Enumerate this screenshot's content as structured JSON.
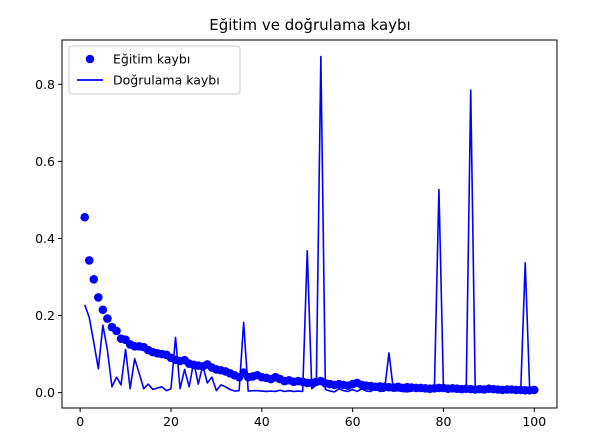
{
  "chart_data": {
    "type": "line",
    "title": "Eğitim ve doğrulama kaybı",
    "xlabel": "",
    "ylabel": "",
    "xlim": [
      -4,
      105
    ],
    "ylim": [
      -0.04,
      0.915
    ],
    "xticks": [
      0,
      20,
      40,
      60,
      80,
      100
    ],
    "yticks": [
      0.0,
      0.2,
      0.4,
      0.6,
      0.8
    ],
    "grid": false,
    "legend_position": "top-left",
    "colors": {
      "series": "#0000ff",
      "axes": "#000000",
      "background": "#ffffff"
    },
    "series": [
      {
        "name": "Eğitim kaybı",
        "style": "markers",
        "x": [
          1,
          2,
          3,
          4,
          5,
          6,
          7,
          8,
          9,
          10,
          11,
          12,
          13,
          14,
          15,
          16,
          17,
          18,
          19,
          20,
          21,
          22,
          23,
          24,
          25,
          26,
          27,
          28,
          29,
          30,
          31,
          32,
          33,
          34,
          35,
          36,
          37,
          38,
          39,
          40,
          41,
          42,
          43,
          44,
          45,
          46,
          47,
          48,
          49,
          50,
          51,
          52,
          53,
          54,
          55,
          56,
          57,
          58,
          59,
          60,
          61,
          62,
          63,
          64,
          65,
          66,
          67,
          68,
          69,
          70,
          71,
          72,
          73,
          74,
          75,
          76,
          77,
          78,
          79,
          80,
          81,
          82,
          83,
          84,
          85,
          86,
          87,
          88,
          89,
          90,
          91,
          92,
          93,
          94,
          95,
          96,
          97,
          98,
          99,
          100
        ],
        "y": [
          0.455,
          0.343,
          0.294,
          0.247,
          0.215,
          0.192,
          0.17,
          0.16,
          0.14,
          0.137,
          0.125,
          0.12,
          0.12,
          0.118,
          0.11,
          0.105,
          0.102,
          0.1,
          0.098,
          0.09,
          0.085,
          0.082,
          0.084,
          0.075,
          0.072,
          0.07,
          0.068,
          0.073,
          0.065,
          0.06,
          0.058,
          0.055,
          0.05,
          0.045,
          0.04,
          0.052,
          0.04,
          0.042,
          0.045,
          0.04,
          0.038,
          0.035,
          0.04,
          0.035,
          0.03,
          0.032,
          0.028,
          0.03,
          0.028,
          0.025,
          0.025,
          0.028,
          0.03,
          0.024,
          0.022,
          0.02,
          0.022,
          0.02,
          0.018,
          0.022,
          0.025,
          0.02,
          0.018,
          0.017,
          0.015,
          0.016,
          0.015,
          0.014,
          0.013,
          0.015,
          0.012,
          0.014,
          0.013,
          0.012,
          0.012,
          0.011,
          0.01,
          0.011,
          0.012,
          0.012,
          0.01,
          0.011,
          0.01,
          0.009,
          0.01,
          0.009,
          0.008,
          0.009,
          0.008,
          0.01,
          0.009,
          0.008,
          0.007,
          0.008,
          0.008,
          0.007,
          0.007,
          0.006,
          0.006,
          0.007
        ]
      },
      {
        "name": "Doğrulama kaybı",
        "style": "line",
        "x": [
          1,
          2,
          3,
          4,
          5,
          6,
          7,
          8,
          9,
          10,
          11,
          12,
          13,
          14,
          15,
          16,
          17,
          18,
          19,
          20,
          21,
          22,
          23,
          24,
          25,
          26,
          27,
          28,
          29,
          30,
          31,
          32,
          33,
          34,
          35,
          36,
          37,
          38,
          39,
          40,
          41,
          42,
          43,
          44,
          45,
          46,
          47,
          48,
          49,
          50,
          51,
          52,
          53,
          54,
          55,
          56,
          57,
          58,
          59,
          60,
          61,
          62,
          63,
          64,
          65,
          66,
          67,
          68,
          69,
          70,
          71,
          72,
          73,
          74,
          75,
          76,
          77,
          78,
          79,
          80,
          81,
          82,
          83,
          84,
          85,
          86,
          87,
          88,
          89,
          90,
          91,
          92,
          93,
          94,
          95,
          96,
          97,
          98,
          99,
          100
        ],
        "y": [
          0.228,
          0.195,
          0.13,
          0.062,
          0.175,
          0.11,
          0.015,
          0.04,
          0.02,
          0.112,
          0.01,
          0.088,
          0.05,
          0.01,
          0.022,
          0.008,
          0.012,
          0.015,
          0.005,
          0.01,
          0.143,
          0.01,
          0.06,
          0.015,
          0.08,
          0.022,
          0.07,
          0.025,
          0.04,
          0.005,
          0.02,
          0.015,
          0.008,
          0.004,
          0.005,
          0.182,
          0.004,
          0.005,
          0.005,
          0.004,
          0.003,
          0.004,
          0.003,
          0.006,
          0.003,
          0.005,
          0.003,
          0.004,
          0.003,
          0.368,
          0.01,
          0.02,
          0.872,
          0.008,
          0.004,
          0.002,
          0.01,
          0.005,
          0.003,
          0.008,
          0.003,
          0.01,
          0.004,
          0.003,
          0.01,
          0.003,
          0.004,
          0.103,
          0.004,
          0.005,
          0.003,
          0.002,
          0.004,
          0.008,
          0.004,
          0.003,
          0.002,
          0.01,
          0.527,
          0.01,
          0.003,
          0.004,
          0.002,
          0.003,
          0.002,
          0.785,
          0.003,
          0.004,
          0.003,
          0.002,
          0.006,
          0.003,
          0.004,
          0.003,
          0.002,
          0.003,
          0.002,
          0.337,
          0.003,
          0.002
        ]
      }
    ]
  }
}
